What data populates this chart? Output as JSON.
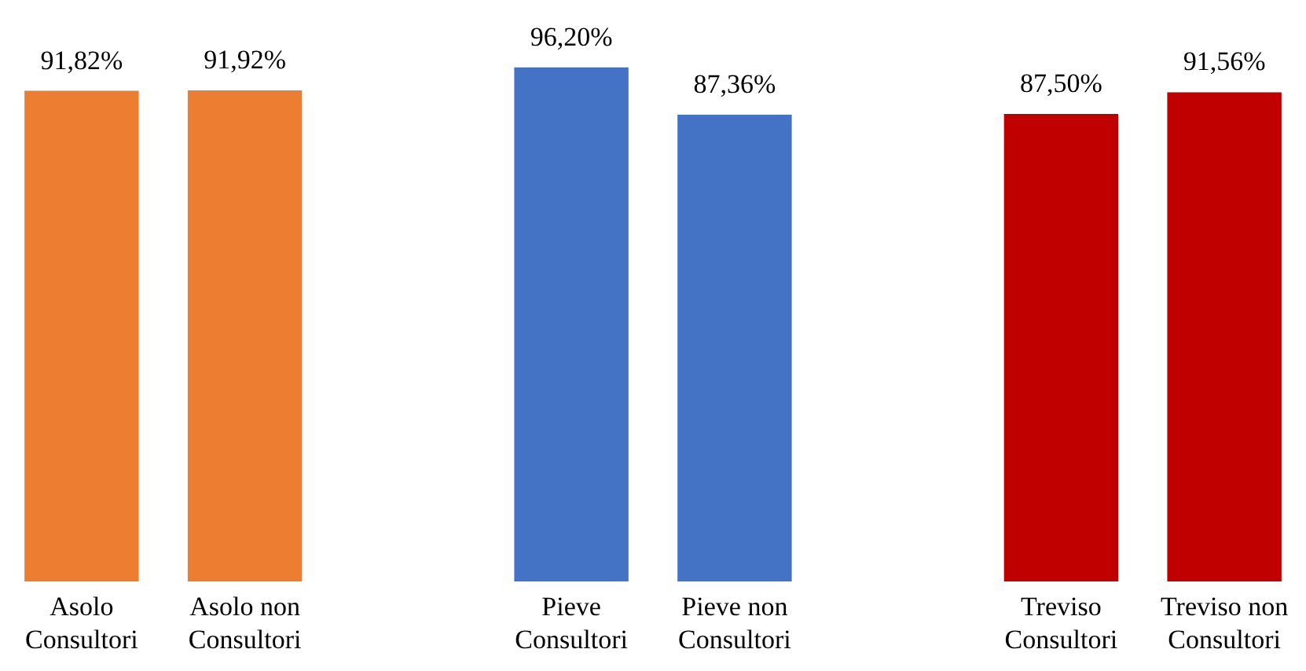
{
  "chart_data": {
    "type": "bar",
    "categories": [
      "Asolo Consultori",
      "Asolo non Consultori",
      null,
      "Pieve Consultori",
      "Pieve non Consultori",
      null,
      "Treviso Consultori",
      "Treviso non Consultori"
    ],
    "values": [
      91.82,
      91.92,
      null,
      96.2,
      87.36,
      null,
      87.5,
      91.56
    ],
    "colors": [
      "#ed7d31",
      "#ed7d31",
      null,
      "#4472c4",
      "#4472c4",
      null,
      "#c00000",
      "#c00000"
    ],
    "value_labels": [
      "91,82%",
      "91,92%",
      null,
      "96,20%",
      "87,36%",
      null,
      "87,50%",
      "91,56%"
    ],
    "orientation": "vertical"
  }
}
